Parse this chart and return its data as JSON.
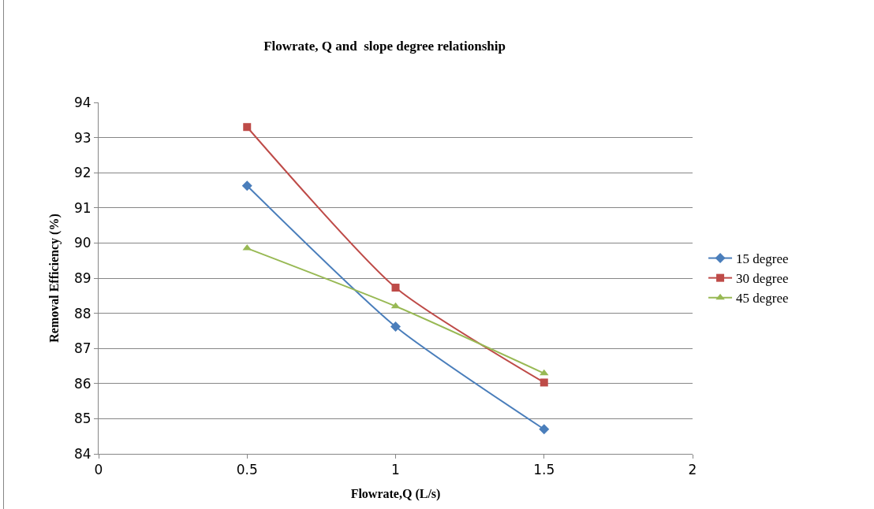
{
  "chart_data": {
    "type": "line",
    "title": "Flowrate, Q and  slope degree relationship",
    "xlabel": "Flowrate,Q (L/s)",
    "ylabel": "Removal Efficiency (%)",
    "x": [
      0.5,
      1,
      1.5
    ],
    "series": [
      {
        "name": "15 degree",
        "color": "#4a7ebb",
        "marker": "diamond",
        "values": [
          91.63,
          87.62,
          84.7
        ]
      },
      {
        "name": "30 degree",
        "color": "#be4b48",
        "marker": "square",
        "values": [
          93.3,
          88.73,
          86.03
        ]
      },
      {
        "name": "45 degree",
        "color": "#98b954",
        "marker": "triangle",
        "values": [
          89.85,
          88.2,
          86.29
        ]
      }
    ],
    "xlim": [
      0,
      2
    ],
    "xticks": [
      0,
      0.5,
      1,
      1.5,
      2
    ],
    "ylim": [
      84,
      94
    ],
    "yticks": [
      84,
      85,
      86,
      87,
      88,
      89,
      90,
      91,
      92,
      93,
      94
    ],
    "grid": "y",
    "legend": "right",
    "line_style": "solid"
  }
}
